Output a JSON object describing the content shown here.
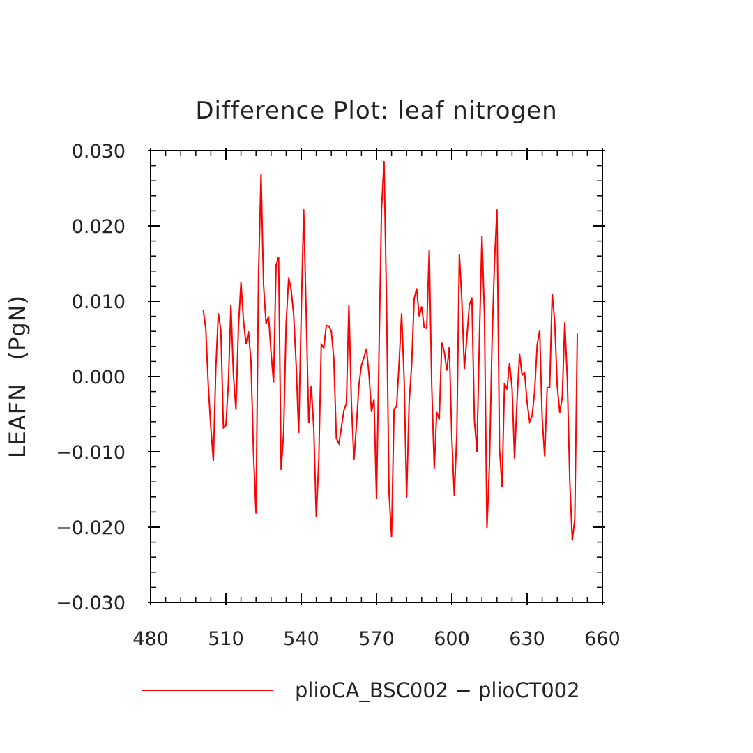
{
  "chart_data": {
    "type": "line",
    "title": "Difference Plot: leaf nitrogen",
    "xlabel": "",
    "ylabel": "LEAFN   (PgN)",
    "xlim": [
      480,
      660
    ],
    "ylim": [
      -0.03,
      0.03
    ],
    "xticks": [
      480,
      510,
      540,
      570,
      600,
      630,
      660
    ],
    "xtick_labels": [
      "480",
      "510",
      "540",
      "570",
      "600",
      "630",
      "660"
    ],
    "yticks": [
      -0.03,
      -0.02,
      -0.01,
      0.0,
      0.01,
      0.02,
      0.03
    ],
    "ytick_labels": [
      "−0.030",
      "−0.020",
      "−0.010",
      "0.000",
      "0.010",
      "0.020",
      "0.030"
    ],
    "grid": false,
    "legend_position": "bottom",
    "series": [
      {
        "name": "plioCA_BSC002 − plioCT002",
        "color": "#ff0000",
        "x": [
          501,
          502,
          503,
          504,
          505,
          506,
          507,
          508,
          509,
          510,
          511,
          512,
          513,
          514,
          515,
          516,
          517,
          518,
          519,
          520,
          521,
          522,
          523,
          524,
          525,
          526,
          527,
          528,
          529,
          530,
          531,
          532,
          533,
          534,
          535,
          536,
          537,
          538,
          539,
          540,
          541,
          542,
          543,
          544,
          545,
          546,
          547,
          548,
          549,
          550,
          551,
          552,
          553,
          554,
          555,
          556,
          557,
          558,
          559,
          560,
          561,
          562,
          563,
          564,
          565,
          566,
          567,
          568,
          569,
          570,
          571,
          572,
          573,
          574,
          575,
          576,
          577,
          578,
          579,
          580,
          581,
          582,
          583,
          584,
          585,
          586,
          587,
          588,
          589,
          590,
          591,
          592,
          593,
          594,
          595,
          596,
          597,
          598,
          599,
          600,
          601,
          602,
          603,
          604,
          605,
          606,
          607,
          608,
          609,
          610,
          611,
          612,
          613,
          614,
          615,
          616,
          617,
          618,
          619,
          620,
          621,
          622,
          623,
          624,
          625,
          626,
          627,
          628,
          629,
          630,
          631,
          632,
          633,
          634,
          635,
          636,
          637,
          638,
          639,
          640,
          641,
          642,
          643,
          644,
          645,
          646,
          647,
          648,
          649,
          650
        ],
        "values": [
          0.0088,
          0.0063,
          -0.0013,
          -0.0068,
          -0.0112,
          0.0012,
          0.0084,
          0.0061,
          -0.0068,
          -0.0065,
          -0.0008,
          0.0095,
          0.0002,
          -0.0044,
          0.0066,
          0.0125,
          0.0075,
          0.0043,
          0.006,
          0.002,
          -0.0103,
          -0.0182,
          0.0135,
          0.0269,
          0.0122,
          0.007,
          0.008,
          0.0031,
          -0.0008,
          0.0148,
          0.0159,
          -0.0124,
          -0.0075,
          0.0071,
          0.0131,
          0.0115,
          0.0082,
          0.0015,
          -0.0075,
          0.0082,
          0.0222,
          0.0082,
          -0.0062,
          -0.0012,
          -0.0068,
          -0.0187,
          -0.0112,
          0.0043,
          0.0038,
          0.0068,
          0.0067,
          0.006,
          0.0024,
          -0.0082,
          -0.0089,
          -0.0068,
          -0.0045,
          -0.0036,
          0.0095,
          -0.0035,
          -0.0111,
          -0.0065,
          -0.0011,
          0.0015,
          0.0025,
          0.0037,
          0.0003,
          -0.0047,
          -0.003,
          -0.0163,
          0.0032,
          0.0222,
          0.0286,
          0.01,
          -0.0155,
          -0.0213,
          -0.0043,
          -0.004,
          0.0018,
          0.0084,
          -0.0003,
          -0.0161,
          -0.0035,
          0.0015,
          0.0103,
          0.0117,
          0.008,
          0.0093,
          0.0065,
          0.0064,
          0.0168,
          -0.0012,
          -0.0122,
          -0.0047,
          -0.0057,
          0.0045,
          0.0033,
          0.0008,
          0.0039,
          -0.0081,
          -0.0159,
          -0.0076,
          0.0163,
          0.0101,
          0.001,
          0.0052,
          0.0095,
          0.0105,
          -0.0058,
          -0.01,
          0.0052,
          0.0187,
          0.0082,
          -0.0202,
          -0.0118,
          0.0041,
          0.0152,
          0.0222,
          -0.0095,
          -0.0147,
          -0.0009,
          -0.0017,
          0.0018,
          -0.0015,
          -0.0109,
          -0.0031,
          0.003,
          0.0002,
          0.0005,
          -0.0034,
          -0.006,
          -0.0052,
          -0.002,
          0.0042,
          0.0061,
          -0.0055,
          -0.0106,
          -0.0015,
          -0.0014,
          0.011,
          0.0073,
          -0.0012,
          -0.0048,
          -0.0028,
          0.0072,
          -0.0002,
          -0.0138,
          -0.0218,
          -0.0189,
          0.0057
        ]
      }
    ]
  }
}
